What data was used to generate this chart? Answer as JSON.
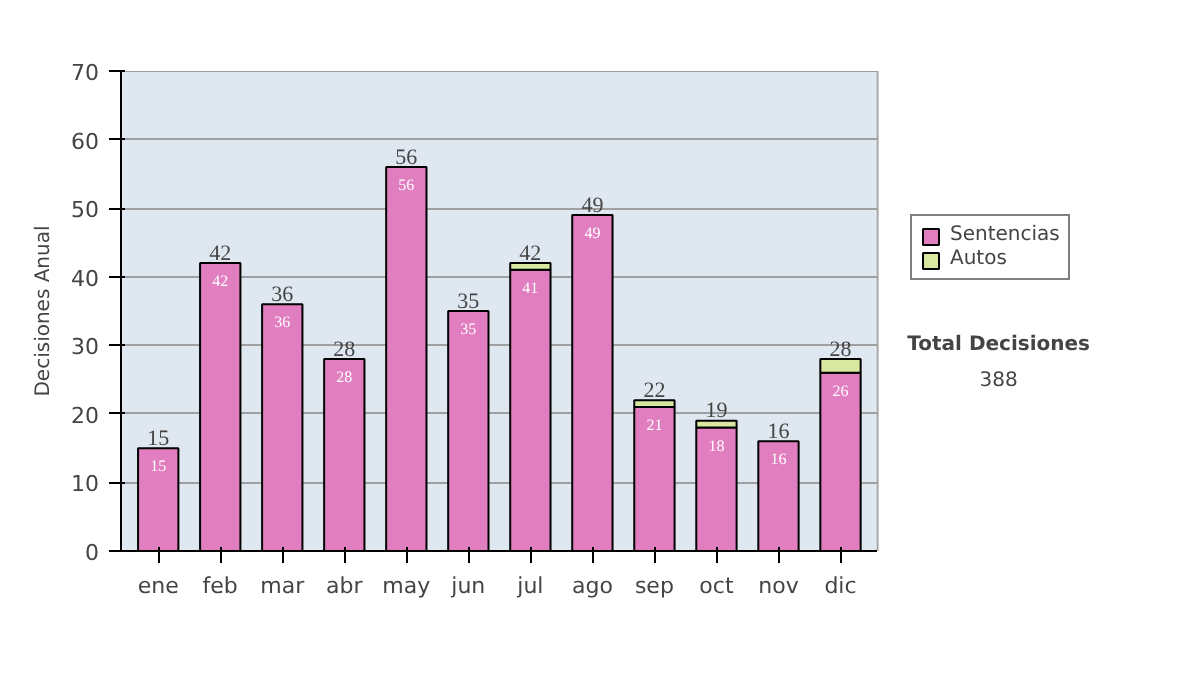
{
  "chart_data": {
    "type": "bar",
    "stacked": true,
    "ylabel": "Decisiones Anual",
    "categories": [
      "ene",
      "feb",
      "mar",
      "abr",
      "may",
      "jun",
      "jul",
      "ago",
      "sep",
      "oct",
      "nov",
      "dic"
    ],
    "series": [
      {
        "name": "Sentencias",
        "color": "#e07ec0",
        "values": [
          15,
          42,
          36,
          28,
          56,
          35,
          41,
          49,
          21,
          18,
          16,
          26
        ],
        "value_labels": [
          "15",
          "42",
          "36",
          "28",
          "56",
          "35",
          "41",
          "49",
          "21",
          "18",
          "16",
          "26"
        ]
      },
      {
        "name": "Autos",
        "color": "#d8e8a0",
        "values": [
          0,
          0,
          0,
          0,
          0,
          0,
          1,
          0,
          1,
          1,
          0,
          2
        ]
      }
    ],
    "totals": [
      "15",
      "42",
      "36",
      "28",
      "56",
      "35",
      "42",
      "49",
      "22",
      "19",
      "16",
      "28"
    ],
    "ylim": [
      0,
      70
    ],
    "yticks": [
      0,
      10,
      20,
      30,
      40,
      50,
      60,
      70
    ],
    "grid": "y",
    "legend": "right",
    "annotations": [
      "Total Decisiones",
      "388"
    ]
  }
}
